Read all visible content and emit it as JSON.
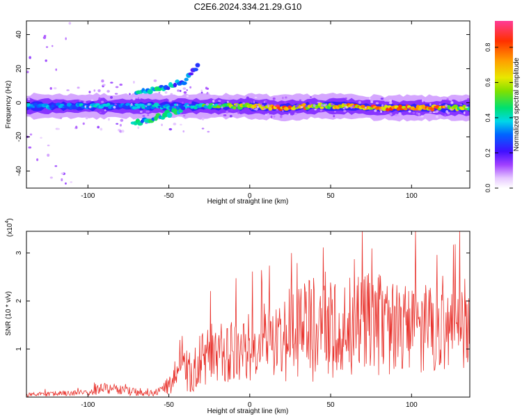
{
  "title": "C2E6.2024.334.21.29.G10",
  "chart_data": [
    {
      "type": "heatmap",
      "xlabel": "Height of straight line (km)",
      "ylabel": "Frequency (Hz)",
      "xlim": [
        -138,
        136
      ],
      "ylim": [
        -50,
        48
      ],
      "xticks": [
        -100,
        -50,
        0,
        50,
        100
      ],
      "yticks": [
        -40,
        -20,
        0,
        20,
        40
      ],
      "colorbar": {
        "label": "Normalized spectral amplitude",
        "range": [
          0,
          0.95
        ],
        "ticks": [
          0.0,
          0.2,
          0.4,
          0.6,
          0.8
        ]
      },
      "ridge": [
        {
          "x": -135,
          "freq": -2,
          "amplitude": 0.35
        },
        {
          "x": -120,
          "freq": -2,
          "amplitude": 0.35
        },
        {
          "x": -100,
          "freq": -2,
          "amplitude": 0.4
        },
        {
          "x": -80,
          "freq": -2,
          "amplitude": 0.35
        },
        {
          "x": -60,
          "freq": -2,
          "amplitude": 0.4
        },
        {
          "x": -40,
          "freq": -2,
          "amplitude": 0.35
        },
        {
          "x": -20,
          "freq": -2,
          "amplitude": 0.6
        },
        {
          "x": 0,
          "freq": -2,
          "amplitude": 0.7
        },
        {
          "x": 20,
          "freq": -3,
          "amplitude": 0.85
        },
        {
          "x": 40,
          "freq": -2,
          "amplitude": 0.7
        },
        {
          "x": 60,
          "freq": -2,
          "amplitude": 0.75
        },
        {
          "x": 80,
          "freq": -3,
          "amplitude": 0.85
        },
        {
          "x": 100,
          "freq": -3,
          "amplitude": 0.85
        },
        {
          "x": 120,
          "freq": -3,
          "amplitude": 0.8
        },
        {
          "x": 135,
          "freq": -3,
          "amplitude": 0.6
        }
      ],
      "upper_branch": [
        {
          "x": -70,
          "freq": 6,
          "amplitude": 0.4
        },
        {
          "x": -60,
          "freq": 8,
          "amplitude": 0.45
        },
        {
          "x": -50,
          "freq": 10,
          "amplitude": 0.4
        },
        {
          "x": -40,
          "freq": 13,
          "amplitude": 0.35
        },
        {
          "x": -32,
          "freq": 22,
          "amplitude": 0.3
        }
      ],
      "lower_branch": [
        {
          "x": -72,
          "freq": -12,
          "amplitude": 0.4
        },
        {
          "x": -60,
          "freq": -10,
          "amplitude": 0.45
        },
        {
          "x": -50,
          "freq": -6,
          "amplitude": 0.45
        },
        {
          "x": -40,
          "freq": -4,
          "amplitude": 0.4
        }
      ]
    },
    {
      "type": "line",
      "xlabel": "Height of straight line (km)",
      "ylabel": "SNR (10 * v/v)",
      "y_multiplier": "(x10",
      "y_multiplier_exp": "4",
      "y_multiplier_close": ")",
      "xlim": [
        -138,
        136
      ],
      "ylim": [
        0,
        3.45
      ],
      "xticks": [
        -100,
        -50,
        0,
        50,
        100
      ],
      "yticks": [
        1,
        2,
        3
      ],
      "color": "#e8302a",
      "series": [
        {
          "x": [
            -138,
            -120,
            -100,
            -90,
            -80,
            -70,
            -60,
            -55,
            -50,
            -45,
            -40,
            -35,
            -30,
            -25,
            -20,
            -15,
            -10,
            -5,
            0,
            5,
            10,
            15,
            20,
            25,
            30,
            35,
            40,
            45,
            50,
            55,
            60,
            65,
            70,
            75,
            80,
            85,
            90,
            95,
            100,
            105,
            110,
            115,
            120,
            125,
            130,
            136
          ],
          "values": [
            0.05,
            0.07,
            0.1,
            0.18,
            0.15,
            0.1,
            0.08,
            0.12,
            0.25,
            0.45,
            0.55,
            0.65,
            0.75,
            0.9,
            0.95,
            0.9,
            1.0,
            1.0,
            1.05,
            1.05,
            1.1,
            1.1,
            1.2,
            1.2,
            1.35,
            1.4,
            1.4,
            1.4,
            1.45,
            1.45,
            1.35,
            1.4,
            1.55,
            1.45,
            1.5,
            1.4,
            1.45,
            1.4,
            1.45,
            1.45,
            1.5,
            1.4,
            1.45,
            1.45,
            1.4,
            1.4
          ],
          "spread": [
            0.04,
            0.05,
            0.07,
            0.12,
            0.1,
            0.08,
            0.06,
            0.1,
            0.2,
            0.35,
            0.45,
            0.55,
            0.55,
            0.6,
            0.65,
            0.6,
            0.7,
            0.7,
            0.75,
            0.75,
            0.8,
            0.8,
            0.9,
            0.9,
            1.0,
            1.05,
            1.1,
            1.1,
            1.1,
            1.0,
            1.0,
            1.05,
            1.25,
            1.05,
            1.1,
            1.0,
            1.0,
            0.95,
            0.95,
            0.95,
            0.95,
            0.9,
            0.9,
            0.9,
            0.85,
            0.8
          ]
        }
      ]
    }
  ]
}
